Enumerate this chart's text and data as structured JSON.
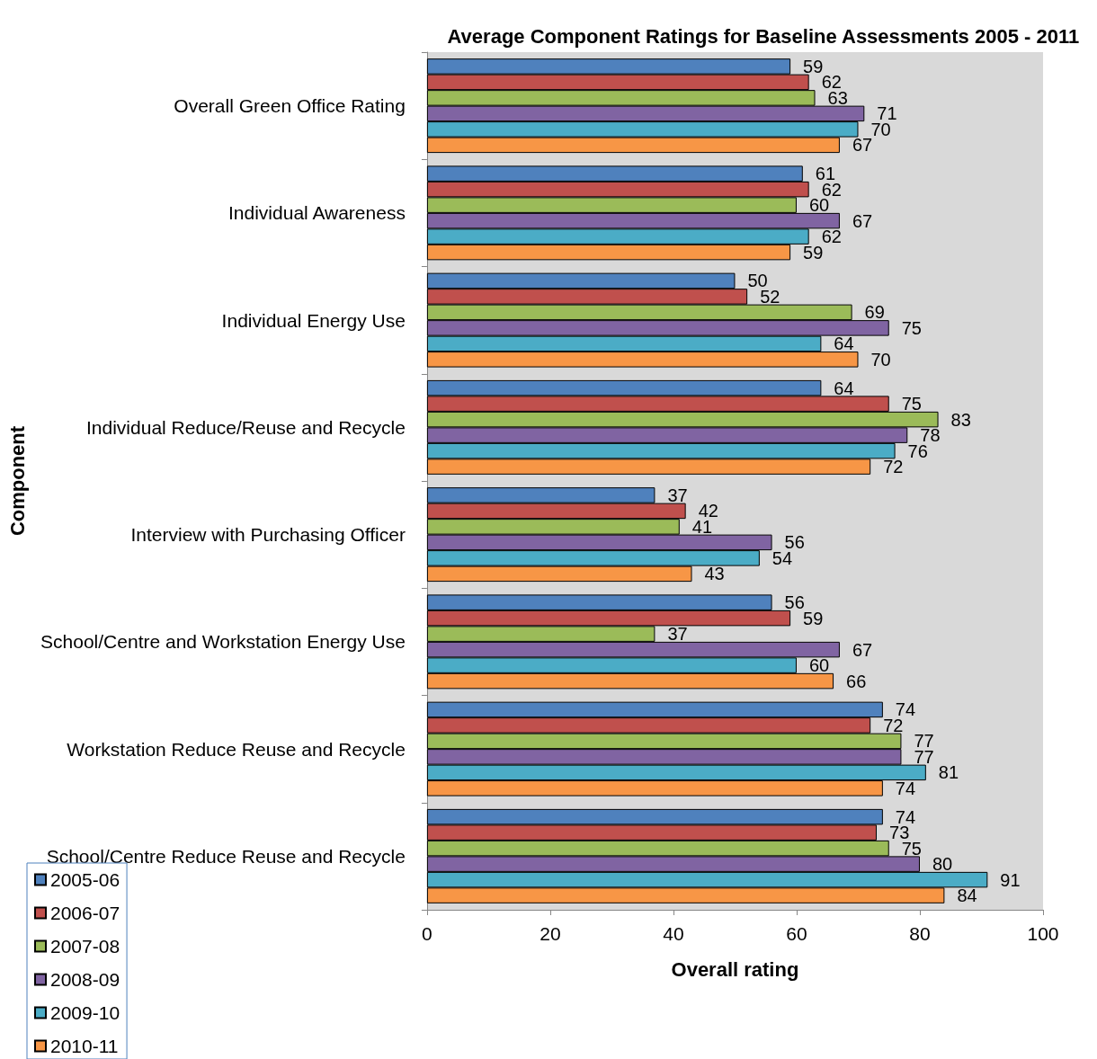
{
  "chart_data": {
    "type": "bar",
    "orientation": "horizontal",
    "title": "Average Component Ratings for Baseline Assessments 2005 - 2011",
    "xlabel": "Overall rating",
    "ylabel": "Component",
    "categories": [
      "Overall Green Office Rating",
      "Individual Awareness",
      "Individual Energy Use",
      "Individual Reduce/Reuse and Recycle",
      "Interview with Purchasing Officer",
      "School/Centre and Workstation Energy Use",
      "Workstation Reduce Reuse and Recycle",
      "School/Centre Reduce Reuse and Recycle"
    ],
    "series": [
      {
        "name": "2005-06",
        "color": "#4f81bd",
        "values": [
          59,
          61,
          50,
          64,
          37,
          56,
          74,
          74
        ]
      },
      {
        "name": "2006-07",
        "color": "#c0504d",
        "values": [
          62,
          62,
          52,
          75,
          42,
          59,
          72,
          73
        ]
      },
      {
        "name": "2007-08",
        "color": "#9bbb59",
        "values": [
          63,
          60,
          69,
          83,
          41,
          37,
          77,
          75
        ]
      },
      {
        "name": "2008-09",
        "color": "#8064a2",
        "values": [
          71,
          67,
          75,
          78,
          56,
          67,
          77,
          80
        ]
      },
      {
        "name": "2009-10",
        "color": "#4bacc6",
        "values": [
          70,
          62,
          64,
          76,
          54,
          60,
          81,
          91
        ]
      },
      {
        "name": "2010-11",
        "color": "#f79646",
        "values": [
          67,
          59,
          70,
          72,
          43,
          66,
          74,
          84
        ]
      }
    ],
    "xlim": [
      0,
      100
    ],
    "xticks": [
      0,
      20,
      40,
      60,
      80,
      100
    ],
    "grid": false,
    "legend": "bottom left",
    "data_labels": true
  }
}
